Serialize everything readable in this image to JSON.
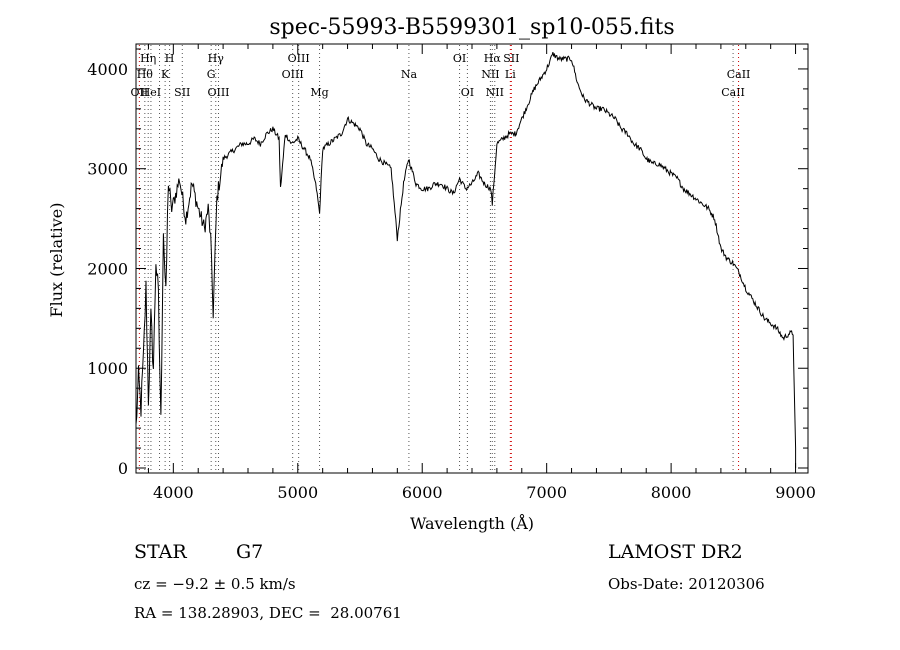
{
  "chart_data": {
    "type": "line",
    "title": "spec-55993-B5599301_sp10-055.fits",
    "xlabel": "Wavelength (Å)",
    "ylabel": "Flux (relative)",
    "xlim": [
      3700,
      9100
    ],
    "ylim": [
      -50,
      4250
    ],
    "xticks": [
      4000,
      5000,
      6000,
      7000,
      8000,
      9000
    ],
    "yticks": [
      0,
      1000,
      2000,
      3000,
      4000
    ],
    "grid": false,
    "line_color": "#000000",
    "marker_color": "#d00000",
    "series": [
      {
        "x": [
          3700,
          3720,
          3740,
          3760,
          3780,
          3800,
          3820,
          3840,
          3860,
          3880,
          3900,
          3920,
          3940,
          3960,
          3980,
          4000,
          4050,
          4100,
          4150,
          4200,
          4250,
          4280,
          4300,
          4320,
          4350,
          4400,
          4450,
          4500,
          4550,
          4600,
          4650,
          4700,
          4750,
          4800,
          4850,
          4861,
          4900,
          4950,
          5000,
          5050,
          5100,
          5150,
          5175,
          5200,
          5250,
          5300,
          5350,
          5400,
          5450,
          5500,
          5550,
          5600,
          5650,
          5700,
          5750,
          5800,
          5850,
          5890,
          5950,
          6000,
          6050,
          6100,
          6150,
          6200,
          6250,
          6300,
          6350,
          6400,
          6450,
          6500,
          6550,
          6563,
          6600,
          6650,
          6700,
          6750,
          6800,
          6850,
          6900,
          6950,
          7000,
          7050,
          7100,
          7150,
          7200,
          7250,
          7300,
          7350,
          7400,
          7450,
          7500,
          7550,
          7600,
          7650,
          7700,
          7750,
          7800,
          7850,
          7900,
          7950,
          8000,
          8050,
          8100,
          8150,
          8200,
          8250,
          8300,
          8350,
          8400,
          8450,
          8500,
          8550,
          8600,
          8650,
          8700,
          8750,
          8800,
          8850,
          8900,
          8950,
          8980,
          9000
        ],
        "y": [
          400,
          900,
          600,
          1100,
          1800,
          700,
          1500,
          1000,
          2100,
          1700,
          450,
          2400,
          1700,
          2900,
          2600,
          2650,
          2900,
          2500,
          2850,
          2600,
          2400,
          2600,
          2300,
          1550,
          2700,
          3100,
          3150,
          3200,
          3250,
          3250,
          3300,
          3250,
          3350,
          3400,
          3300,
          2800,
          3350,
          3250,
          3300,
          3200,
          3100,
          2800,
          2550,
          3200,
          3250,
          3300,
          3350,
          3500,
          3450,
          3400,
          3250,
          3200,
          3100,
          3050,
          3000,
          2300,
          2850,
          3100,
          2850,
          2800,
          2800,
          2850,
          2850,
          2800,
          2750,
          2900,
          2800,
          2850,
          2950,
          2850,
          2800,
          2650,
          3250,
          3300,
          3350,
          3350,
          3500,
          3650,
          3800,
          3900,
          4000,
          4150,
          4100,
          4100,
          4100,
          3850,
          3700,
          3650,
          3600,
          3600,
          3550,
          3500,
          3400,
          3350,
          3250,
          3200,
          3100,
          3050,
          3050,
          3000,
          2950,
          2900,
          2800,
          2750,
          2700,
          2650,
          2600,
          2500,
          2200,
          2100,
          2050,
          1950,
          1800,
          1700,
          1600,
          1500,
          1450,
          1400,
          1300,
          1350,
          1350,
          200
        ]
      }
    ],
    "lines": [
      {
        "wl": 3727,
        "label": "OII",
        "row": 3
      },
      {
        "wl": 3771,
        "label": "Hθ",
        "row": 2
      },
      {
        "wl": 3798,
        "label": "Hη",
        "row": 1
      },
      {
        "wl": 3820,
        "label": "HeI",
        "row": 3
      },
      {
        "wl": 3889,
        "label": "",
        "row": 0
      },
      {
        "wl": 3934,
        "label": "K",
        "row": 2
      },
      {
        "wl": 3970,
        "label": "H",
        "row": 1
      },
      {
        "wl": 4072,
        "label": "SII",
        "row": 3
      },
      {
        "wl": 4304,
        "label": "G",
        "row": 2
      },
      {
        "wl": 4341,
        "label": "Hγ",
        "row": 1
      },
      {
        "wl": 4363,
        "label": "OIII",
        "row": 3
      },
      {
        "wl": 4959,
        "label": "OIII",
        "row": 2
      },
      {
        "wl": 5007,
        "label": "OIII",
        "row": 1
      },
      {
        "wl": 5175,
        "label": "Mg",
        "row": 3
      },
      {
        "wl": 5893,
        "label": "Na",
        "row": 2
      },
      {
        "wl": 6300,
        "label": "OI",
        "row": 1
      },
      {
        "wl": 6363,
        "label": "OI",
        "row": 3
      },
      {
        "wl": 6548,
        "label": "NII",
        "row": 2
      },
      {
        "wl": 6563,
        "label": "Hα",
        "row": 1
      },
      {
        "wl": 6583,
        "label": "NII",
        "row": 3
      },
      {
        "wl": 6708,
        "label": "Li",
        "row": 2
      },
      {
        "wl": 6716,
        "label": "SII",
        "row": 1
      },
      {
        "wl": 8498,
        "label": "CaII",
        "row": 3
      },
      {
        "wl": 8542,
        "label": "CaII",
        "row": 2
      }
    ],
    "red_lines": [
      3727,
      6708,
      6716,
      8542
    ]
  },
  "info": {
    "class": "STAR",
    "subclass": "G7",
    "redshift": "cz = −9.2 ± 0.5 km/s",
    "coords": "RA = 138.28903, DEC =  28.00761",
    "survey": "LAMOST DR2",
    "obs_date": "Obs-Date: 20120306"
  }
}
